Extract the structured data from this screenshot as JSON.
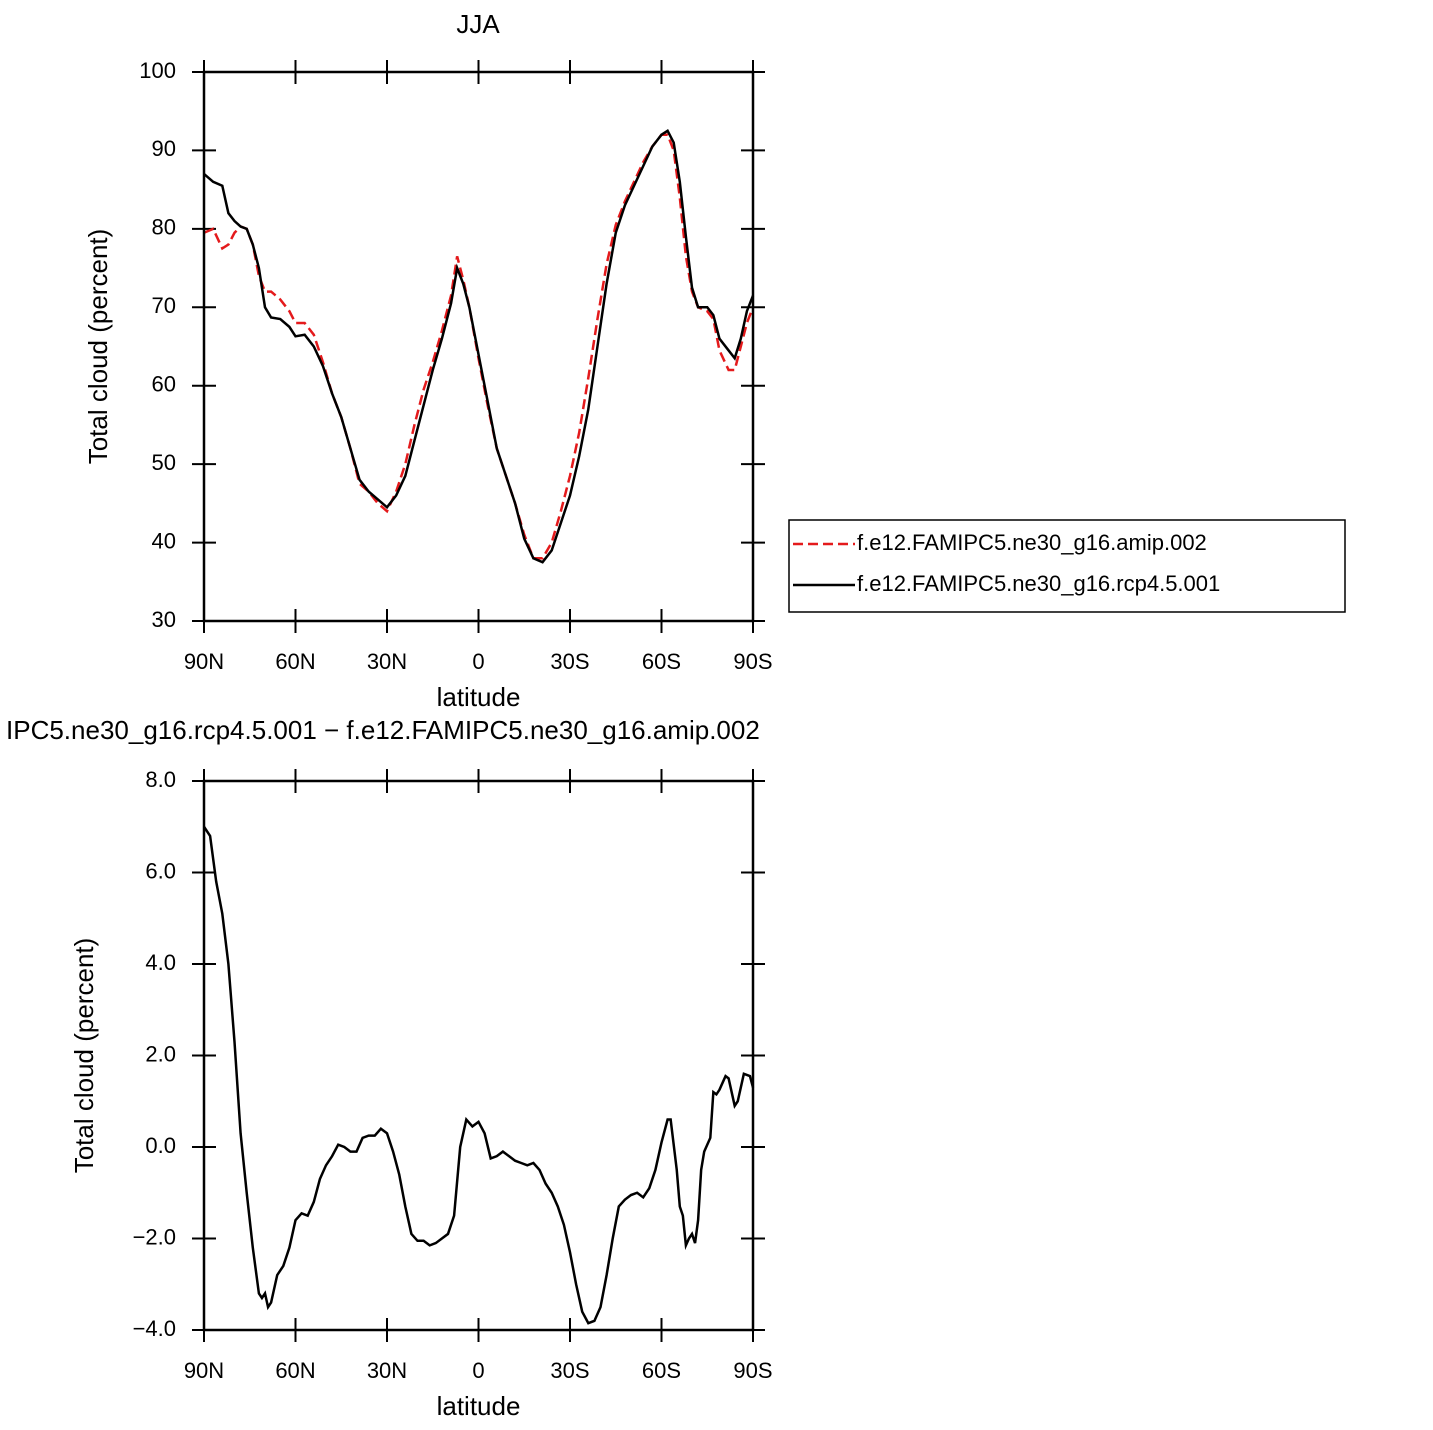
{
  "chart_data": [
    {
      "type": "line",
      "title": "JJA",
      "xlabel": "latitude",
      "ylabel": "Total cloud (percent)",
      "x": [
        90,
        87,
        84,
        82,
        80,
        78,
        76,
        74,
        72,
        70,
        68,
        65,
        62,
        60,
        57,
        54,
        51,
        48,
        45,
        42,
        39,
        36,
        33,
        30,
        27,
        24,
        21,
        18,
        15,
        12,
        9,
        7,
        5,
        3,
        0,
        -3,
        -6,
        -9,
        -12,
        -15,
        -18,
        -21,
        -24,
        -27,
        -30,
        -33,
        -36,
        -39,
        -42,
        -45,
        -48,
        -51,
        -54,
        -57,
        -60,
        -62,
        -64,
        -66,
        -68,
        -70,
        -72,
        -75,
        -77,
        -79,
        -82,
        -84,
        -86,
        -88,
        -90
      ],
      "series": [
        {
          "name": "f.e12.FAMIPC5.ne30_g16.amip.002",
          "color": "#e41a1c",
          "dash": true,
          "values": [
            79.5,
            80,
            77.5,
            78,
            79.5,
            80.3,
            80,
            78,
            74,
            72,
            72,
            71,
            69.5,
            68,
            68,
            66.5,
            63,
            59,
            56,
            52,
            47.5,
            46.5,
            45,
            44,
            46.5,
            50,
            55,
            59.5,
            63,
            67,
            71.5,
            76.5,
            73.5,
            70,
            63.5,
            57.5,
            52,
            48.5,
            45,
            41,
            38,
            38,
            40,
            44,
            48.5,
            54,
            61,
            68.5,
            75.5,
            80.5,
            83.5,
            86,
            88.5,
            90.5,
            92,
            92,
            90,
            84,
            76.5,
            72,
            70,
            69.5,
            68.5,
            64.5,
            62,
            62,
            65,
            68,
            70
          ]
        },
        {
          "name": "f.e12.FAMIPC5.ne30_g16.rcp4.5.001",
          "color": "#000000",
          "dash": false,
          "values": [
            87,
            86,
            85.5,
            82,
            81,
            80.3,
            80,
            78,
            75,
            70,
            68.7,
            68.5,
            67.5,
            66.3,
            66.5,
            65,
            62.5,
            59,
            56,
            52,
            48,
            46.5,
            45.5,
            44.5,
            46,
            48.5,
            53,
            57.5,
            62,
            66,
            70.5,
            75,
            73,
            70,
            64,
            58,
            52,
            48.5,
            45,
            40.5,
            38,
            37.5,
            39,
            42.5,
            46,
            51,
            57,
            65,
            73,
            79.5,
            83,
            85.5,
            88,
            90.5,
            92,
            92.5,
            91,
            86,
            79,
            72.5,
            70,
            70,
            69,
            66,
            64.5,
            63.5,
            66,
            69.5,
            71.5
          ]
        }
      ],
      "xlim": [
        90,
        -90
      ],
      "xticks": [
        {
          "value": 90,
          "label": "90N"
        },
        {
          "value": 60,
          "label": "60N"
        },
        {
          "value": 30,
          "label": "30N"
        },
        0,
        {
          "value": -30,
          "label": "30S"
        },
        {
          "value": -60,
          "label": "60S"
        },
        {
          "value": -90,
          "label": "90S"
        }
      ],
      "ylim": [
        30,
        100
      ],
      "yticks": [
        30,
        40,
        50,
        60,
        70,
        80,
        90,
        100
      ],
      "legend": "right"
    },
    {
      "type": "line",
      "title": "IPC5.ne30_g16.rcp4.5.001 − f.e12.FAMIPC5.ne30_g16.amip.002",
      "xlabel": "latitude",
      "ylabel": "Total cloud (percent)",
      "x": [
        90,
        88,
        86,
        84,
        82,
        80,
        78,
        76,
        74,
        72,
        71,
        70,
        69,
        68,
        66,
        64,
        62,
        60,
        58,
        56,
        54,
        52,
        50,
        48,
        46,
        44,
        42,
        40,
        38,
        36,
        34,
        32,
        30,
        28,
        26,
        24,
        22,
        20,
        18,
        16,
        14,
        12,
        10,
        8,
        6,
        4,
        2,
        0,
        -2,
        -4,
        -6,
        -8,
        -10,
        -12,
        -14,
        -16,
        -18,
        -20,
        -22,
        -24,
        -26,
        -28,
        -30,
        -32,
        -34,
        -36,
        -38,
        -40,
        -42,
        -44,
        -46,
        -48,
        -50,
        -52,
        -54,
        -56,
        -58,
        -60,
        -62,
        -63,
        -65,
        -66,
        -67,
        -68,
        -69,
        -70,
        -71,
        -72,
        -73,
        -74,
        -76,
        -77,
        -78,
        -79,
        -81,
        -82,
        -84,
        -85,
        -87,
        -89,
        -90
      ],
      "series": [
        {
          "color": "#000000",
          "values": [
            7,
            6.8,
            5.8,
            5.1,
            4,
            2.3,
            0.3,
            -1,
            -2.2,
            -3.2,
            -3.3,
            -3.2,
            -3.5,
            -3.4,
            -2.8,
            -2.6,
            -2.2,
            -1.6,
            -1.45,
            -1.5,
            -1.2,
            -0.7,
            -0.4,
            -0.2,
            0.05,
            0,
            -0.1,
            -0.1,
            0.2,
            0.25,
            0.25,
            0.4,
            0.3,
            -0.1,
            -0.6,
            -1.3,
            -1.9,
            -2.05,
            -2.05,
            -2.15,
            -2.1,
            -2,
            -1.9,
            -1.5,
            0,
            0.6,
            0.45,
            0.55,
            0.3,
            -0.25,
            -0.2,
            -0.1,
            -0.2,
            -0.3,
            -0.35,
            -0.4,
            -0.35,
            -0.5,
            -0.8,
            -1,
            -1.3,
            -1.7,
            -2.3,
            -3,
            -3.6,
            -3.85,
            -3.8,
            -3.5,
            -2.8,
            -2,
            -1.3,
            -1.15,
            -1.05,
            -1,
            -1.1,
            -0.9,
            -0.5,
            0.1,
            0.6,
            0.6,
            -0.5,
            -1.3,
            -1.5,
            -2.15,
            -2,
            -1.9,
            -2.1,
            -1.6,
            -0.5,
            -0.1,
            0.2,
            1.2,
            1.15,
            1.25,
            1.55,
            1.5,
            0.9,
            1,
            1.6,
            1.55,
            1.3
          ]
        }
      ],
      "xlim": [
        90,
        -90
      ],
      "xticks": [
        {
          "value": 90,
          "label": "90N"
        },
        {
          "value": 60,
          "label": "60N"
        },
        {
          "value": 30,
          "label": "30N"
        },
        0,
        {
          "value": -30,
          "label": "30S"
        },
        {
          "value": -60,
          "label": "60S"
        },
        {
          "value": -90,
          "label": "90S"
        }
      ],
      "ylim": [
        -4,
        8
      ],
      "yticks": [
        {
          "value": -4,
          "label": "−4.0"
        },
        {
          "value": -2,
          "label": "−2.0"
        },
        {
          "value": 0,
          "label": "0.0"
        },
        {
          "value": 2,
          "label": "2.0"
        },
        {
          "value": 4,
          "label": "4.0"
        },
        {
          "value": 6,
          "label": "6.0"
        },
        {
          "value": 8,
          "label": "8.0"
        }
      ]
    }
  ]
}
